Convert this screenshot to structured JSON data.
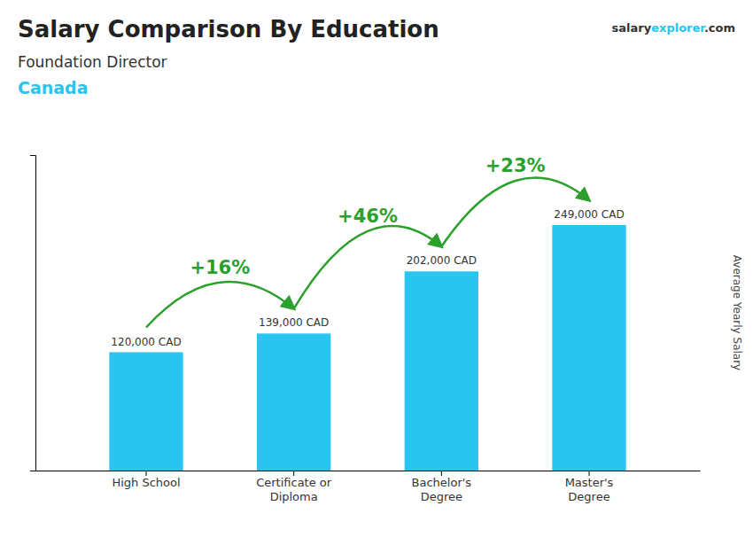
{
  "chart_data": {
    "type": "bar",
    "title": "Salary Comparison By Education",
    "subtitle": [
      "Foundation Director",
      "Canada"
    ],
    "source": [
      "salary",
      "explorer",
      ".com"
    ],
    "y_label": "Average Yearly Salary",
    "categories": [
      "High School",
      "Certificate or\nDiploma",
      "Bachelor's\nDegree",
      "Master's\nDegree"
    ],
    "values": [
      120000,
      139000,
      202000,
      249000
    ],
    "value_labels": [
      "120,000 CAD",
      "139,000 CAD",
      "202,000 CAD",
      "249,000 CAD"
    ],
    "annotations": [
      "+16%",
      "+46%",
      "+23%"
    ],
    "color": "#29c4f0",
    "ylim": [
      0,
      320000
    ],
    "grid": false,
    "data_labels": true,
    "tick_labels": "x"
  }
}
